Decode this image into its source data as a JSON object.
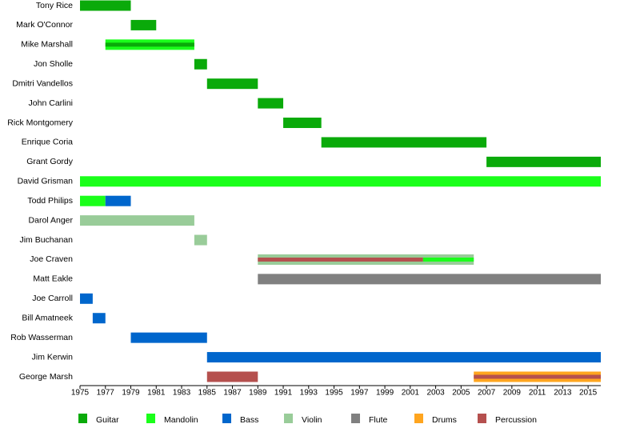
{
  "chart_data": {
    "type": "timeline",
    "categories": [
      "Tony Rice",
      "Mark O'Connor",
      "Mike Marshall",
      "Jon Sholle",
      "Dmitri Vandellos",
      "John Carlini",
      "Rick Montgomery",
      "Enrique Coria",
      "Grant Gordy",
      "David Grisman",
      "Todd Philips",
      "Darol Anger",
      "Jim Buchanan",
      "Joe Craven",
      "Matt Eakle",
      "Joe Carroll",
      "Bill Amatneek",
      "Rob Wasserman",
      "Jim Kerwin",
      "George Marsh"
    ],
    "xlim": [
      1975,
      2016
    ],
    "xticks": [
      1975,
      1977,
      1979,
      1981,
      1983,
      1985,
      1987,
      1989,
      1991,
      1993,
      1995,
      1997,
      1999,
      2001,
      2003,
      2005,
      2007,
      2009,
      2011,
      2013,
      2015
    ],
    "series": [
      {
        "name": "Guitar",
        "color": "#0aaa0a",
        "spans": [
          {
            "row": 0,
            "start": 1975,
            "end": 1979,
            "size": "full"
          },
          {
            "row": 1,
            "start": 1979,
            "end": 1981,
            "size": "full"
          },
          {
            "row": 2,
            "start": 1977,
            "end": 1984,
            "size": "inner"
          },
          {
            "row": 3,
            "start": 1984,
            "end": 1985,
            "size": "full"
          },
          {
            "row": 4,
            "start": 1985,
            "end": 1989,
            "size": "full"
          },
          {
            "row": 5,
            "start": 1989,
            "end": 1991,
            "size": "full"
          },
          {
            "row": 6,
            "start": 1991,
            "end": 1994,
            "size": "full"
          },
          {
            "row": 7,
            "start": 1994,
            "end": 2007,
            "size": "full"
          },
          {
            "row": 8,
            "start": 2007,
            "end": 2016,
            "size": "full"
          }
        ]
      },
      {
        "name": "Mandolin",
        "color": "#1aff1a",
        "spans": [
          {
            "row": 2,
            "start": 1977,
            "end": 1984,
            "size": "full"
          },
          {
            "row": 9,
            "start": 1975,
            "end": 2016,
            "size": "full"
          },
          {
            "row": 10,
            "start": 1975,
            "end": 1977,
            "size": "full"
          },
          {
            "row": 13,
            "start": 2002,
            "end": 2006,
            "size": "inner"
          }
        ]
      },
      {
        "name": "Bass",
        "color": "#0066cc",
        "spans": [
          {
            "row": 10,
            "start": 1977,
            "end": 1979,
            "size": "full"
          },
          {
            "row": 15,
            "start": 1975,
            "end": 1976,
            "size": "full"
          },
          {
            "row": 16,
            "start": 1976,
            "end": 1977,
            "size": "full"
          },
          {
            "row": 17,
            "start": 1979,
            "end": 1985,
            "size": "full"
          },
          {
            "row": 18,
            "start": 1985,
            "end": 2016,
            "size": "full"
          }
        ]
      },
      {
        "name": "Violin",
        "color": "#99cc99",
        "spans": [
          {
            "row": 11,
            "start": 1975,
            "end": 1984,
            "size": "full"
          },
          {
            "row": 12,
            "start": 1984,
            "end": 1985,
            "size": "full"
          },
          {
            "row": 13,
            "start": 1989,
            "end": 2006,
            "size": "full"
          }
        ]
      },
      {
        "name": "Flute",
        "color": "#808080",
        "spans": [
          {
            "row": 14,
            "start": 1989,
            "end": 2016,
            "size": "full"
          }
        ]
      },
      {
        "name": "Drums",
        "color": "#ffa51f",
        "spans": [
          {
            "row": 19,
            "start": 2006,
            "end": 2016,
            "size": "full"
          }
        ]
      },
      {
        "name": "Percussion",
        "color": "#b5504e",
        "spans": [
          {
            "row": 13,
            "start": 1989,
            "end": 2002,
            "size": "inner"
          },
          {
            "row": 19,
            "start": 1985,
            "end": 1989,
            "size": "full"
          },
          {
            "row": 19,
            "start": 2006,
            "end": 2016,
            "size": "inner"
          }
        ]
      }
    ]
  }
}
